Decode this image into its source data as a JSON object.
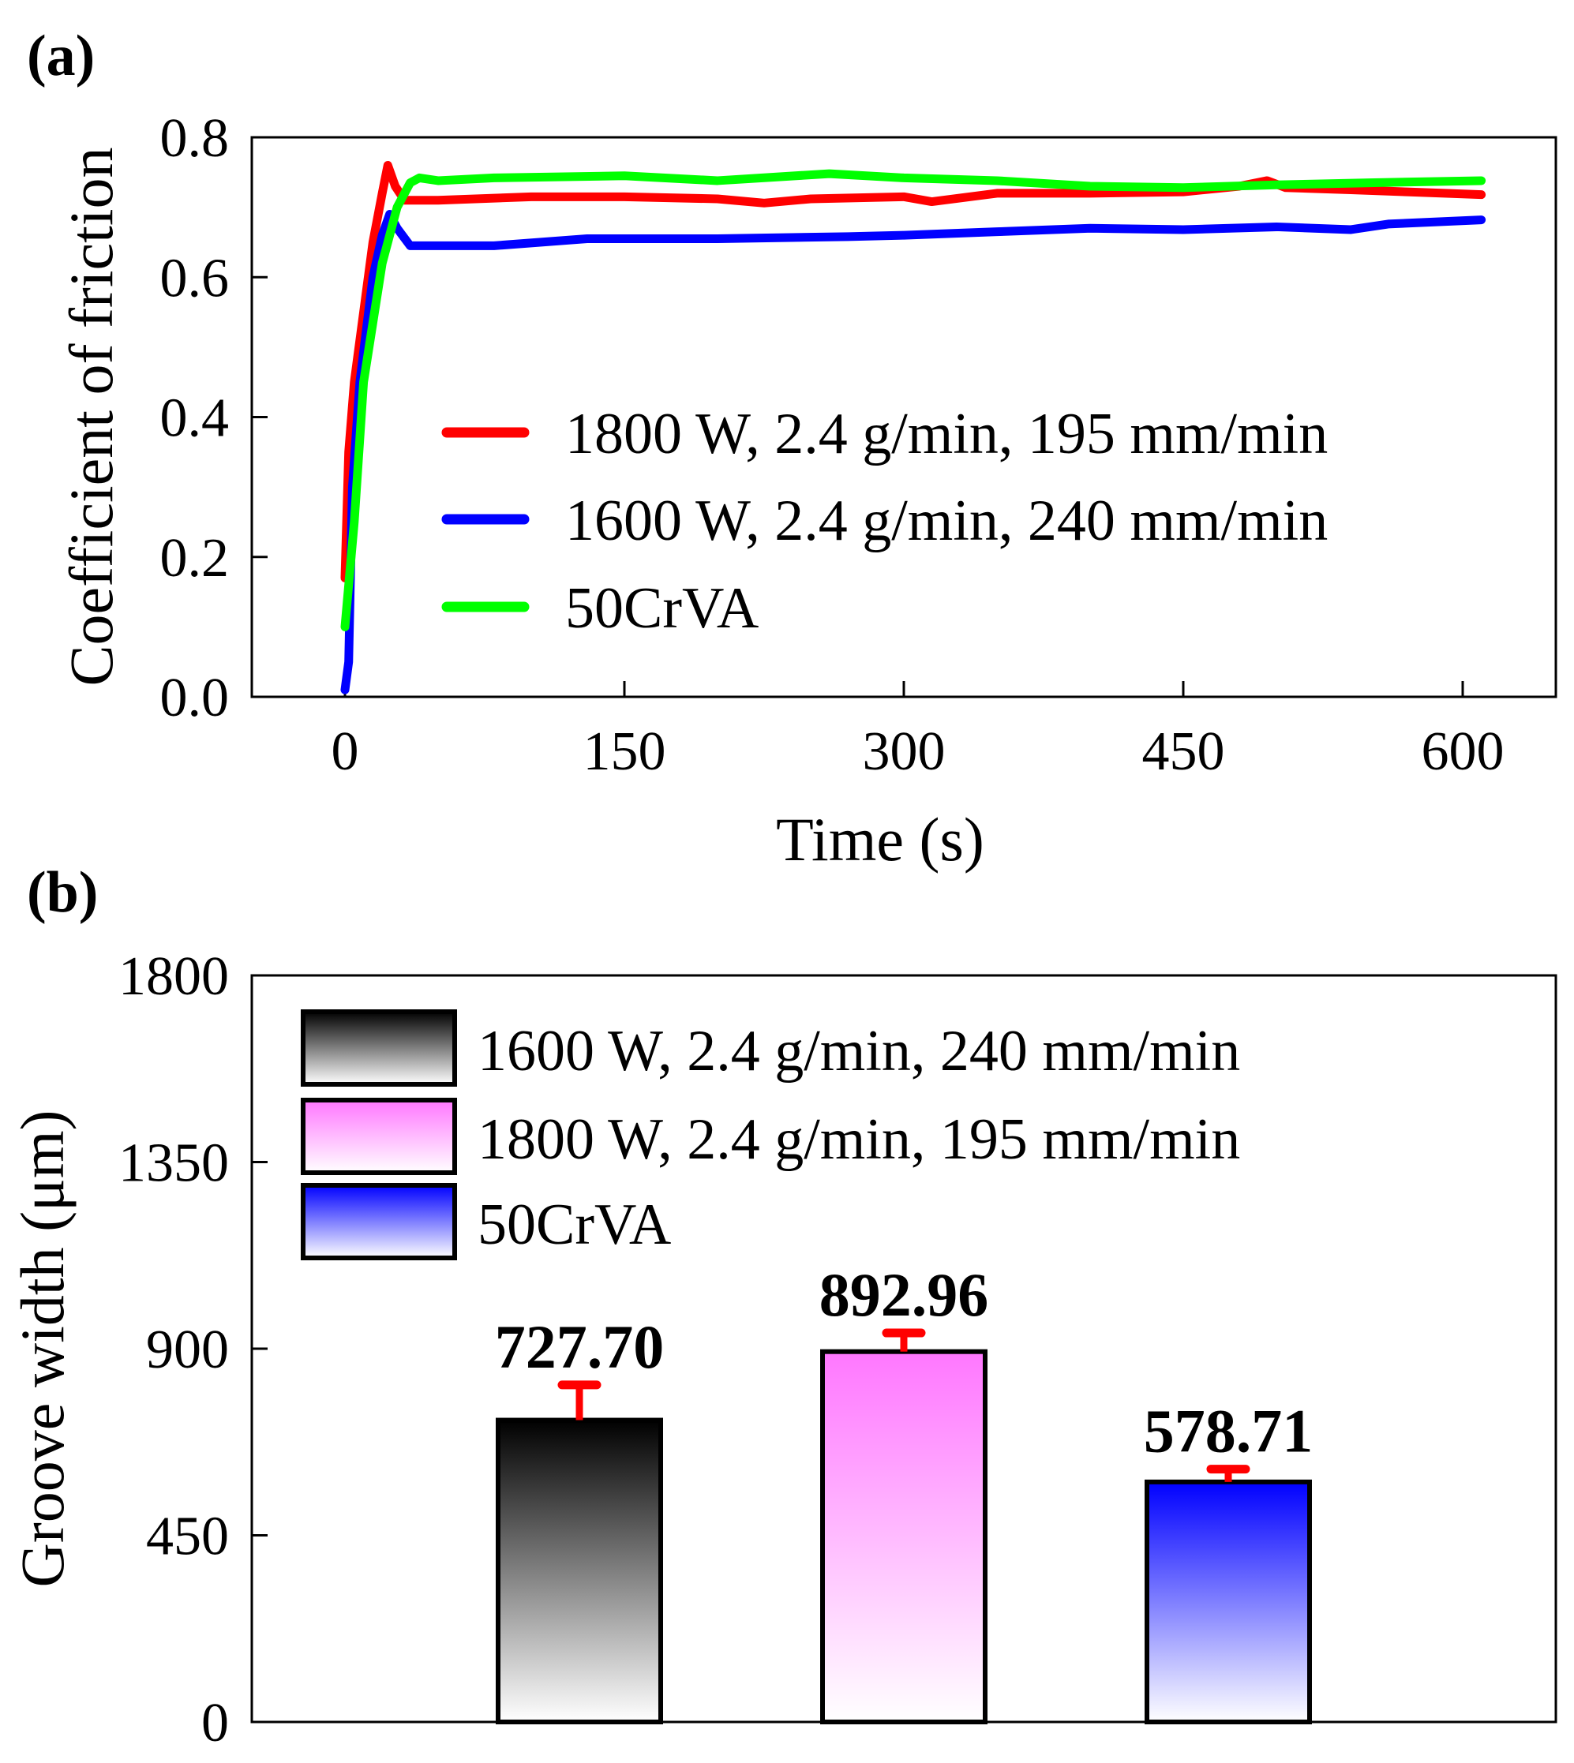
{
  "chart_data": [
    {
      "panel_label": "(a)",
      "type": "line",
      "xlabel": "Time (s)",
      "ylabel": "Coefficient of friction",
      "xlim": [
        -20,
        645
      ],
      "ylim": [
        0.0,
        0.8
      ],
      "xticks": [
        "0",
        "150",
        "300",
        "450",
        "600"
      ],
      "xtick_values": [
        0,
        150,
        300,
        450,
        600
      ],
      "yticks": [
        "0.0",
        "0.2",
        "0.4",
        "0.6",
        "0.8"
      ],
      "ytick_values": [
        0.0,
        0.2,
        0.4,
        0.6,
        0.8
      ],
      "legend_position": "center-right",
      "series": [
        {
          "name": "1800 W, 2.4 g/min, 195 mm/min",
          "color": "#ff0000",
          "x": [
            0,
            2,
            5,
            10,
            15,
            20,
            23,
            27,
            32,
            50,
            100,
            150,
            200,
            225,
            250,
            300,
            315,
            350,
            400,
            450,
            480,
            495,
            505,
            540,
            570,
            610
          ],
          "y": [
            0.17,
            0.35,
            0.45,
            0.55,
            0.65,
            0.72,
            0.76,
            0.73,
            0.71,
            0.71,
            0.715,
            0.715,
            0.712,
            0.706,
            0.712,
            0.715,
            0.708,
            0.72,
            0.72,
            0.722,
            0.73,
            0.738,
            0.728,
            0.725,
            0.722,
            0.718
          ]
        },
        {
          "name": "1600 W, 2.4 g/min, 240 mm/min",
          "color": "#0000ff",
          "x": [
            0,
            2,
            4,
            8,
            15,
            20,
            24,
            28,
            35,
            80,
            130,
            200,
            270,
            300,
            350,
            400,
            450,
            500,
            540,
            560,
            610
          ],
          "y": [
            0.01,
            0.05,
            0.3,
            0.45,
            0.6,
            0.66,
            0.69,
            0.67,
            0.645,
            0.645,
            0.655,
            0.655,
            0.658,
            0.66,
            0.665,
            0.67,
            0.668,
            0.672,
            0.668,
            0.676,
            0.682
          ]
        },
        {
          "name": "50CrVA",
          "color": "#00ff00",
          "x": [
            0,
            5,
            10,
            20,
            28,
            35,
            40,
            50,
            80,
            150,
            200,
            260,
            300,
            350,
            400,
            450,
            500,
            550,
            610
          ],
          "y": [
            0.1,
            0.25,
            0.45,
            0.62,
            0.7,
            0.735,
            0.742,
            0.738,
            0.742,
            0.745,
            0.738,
            0.748,
            0.742,
            0.738,
            0.73,
            0.728,
            0.732,
            0.735,
            0.738
          ]
        }
      ]
    },
    {
      "panel_label": "(b)",
      "type": "bar",
      "ylabel": "Groove width (μm)",
      "ylim": [
        0,
        1800
      ],
      "yticks": [
        "0",
        "450",
        "900",
        "1350",
        "1800"
      ],
      "ytick_values": [
        0,
        450,
        900,
        1350,
        1800
      ],
      "legend_position": "top-left",
      "categories": [
        "1600 W, 2.4 g/min, 240 mm/min",
        "1800 W, 2.4 g/min, 195 mm/min",
        "50CrVA"
      ],
      "values": [
        727.7,
        892.96,
        578.71
      ],
      "value_labels": [
        "727.70",
        "892.96",
        "578.71"
      ],
      "errors": [
        85,
        45,
        31
      ],
      "error_color": "#ff0000",
      "colors": [
        "#000000",
        "#ff66ff",
        "#0000ff"
      ]
    }
  ]
}
